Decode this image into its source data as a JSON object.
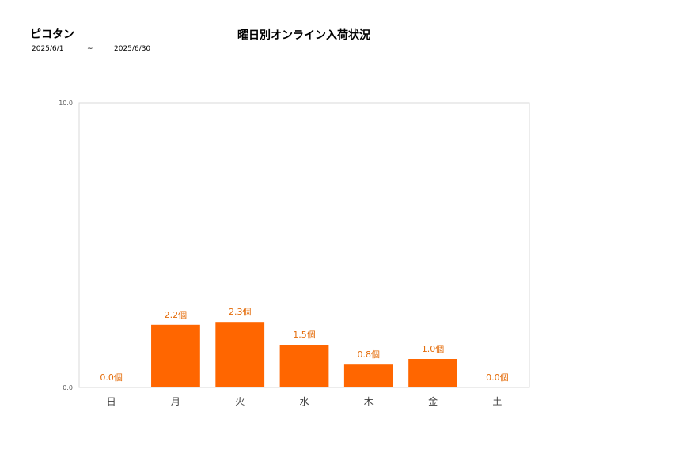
{
  "header": {
    "shop_name": "ピコタン",
    "title": "曜日別オンライン入荷状況",
    "period_start": "2025/6/1",
    "period_sep": "~",
    "period_end": "2025/6/30"
  },
  "chart_data": {
    "type": "bar",
    "title": "曜日別オンライン入荷状況",
    "categories": [
      "日",
      "月",
      "火",
      "水",
      "木",
      "金",
      "土"
    ],
    "values": [
      0.0,
      2.2,
      2.3,
      1.5,
      0.8,
      1.0,
      0.0
    ],
    "data_labels": [
      "0.0個",
      "2.2個",
      "2.3個",
      "1.5個",
      "0.8個",
      "1.0個",
      "0.0個"
    ],
    "unit": "個",
    "ylim": [
      0.0,
      10.0
    ],
    "y_ticks": [
      "0.0",
      "10.0"
    ],
    "xlabel": "",
    "ylabel": "",
    "grid": false,
    "bar_color": "#ff6600",
    "label_color": "#e46c0a"
  }
}
